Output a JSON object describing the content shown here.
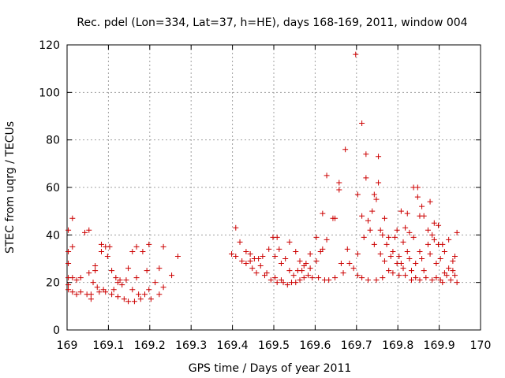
{
  "chart_data": {
    "type": "scatter",
    "title": "Rec. pdel (Lon=334, Lat=37, h=HE), days 168-169, 2011, window 004",
    "xlabel": "GPS time / Days of year 2011",
    "ylabel": "STEC from uqrg / TECUs",
    "xlim": [
      169,
      170
    ],
    "ylim": [
      0,
      120
    ],
    "x_ticks": [
      169,
      169.1,
      169.2,
      169.3,
      169.4,
      169.5,
      169.6,
      169.7,
      169.8,
      169.9,
      170
    ],
    "x_tick_labels": [
      "169",
      "169.1",
      "169.2",
      "169.3",
      "169.4",
      "169.5",
      "169.6",
      "169.7",
      "169.8",
      "169.9",
      "170"
    ],
    "y_ticks": [
      0,
      20,
      40,
      60,
      80,
      100,
      120
    ],
    "y_tick_labels": [
      "0",
      "20",
      "40",
      "60",
      "80",
      "100",
      "120"
    ],
    "grid": true,
    "marker": "+",
    "series": [
      {
        "name": "STEC",
        "color": "#cc0000",
        "points": [
          [
            169.003,
            42
          ],
          [
            169.003,
            33
          ],
          [
            169.003,
            28
          ],
          [
            169.003,
            22
          ],
          [
            169.003,
            19
          ],
          [
            169.003,
            17
          ],
          [
            169.013,
            47
          ],
          [
            169.013,
            35
          ],
          [
            169.013,
            22
          ],
          [
            169.013,
            16
          ],
          [
            169.023,
            21
          ],
          [
            169.023,
            15
          ],
          [
            169.033,
            22
          ],
          [
            169.033,
            16
          ],
          [
            169.043,
            41
          ],
          [
            169.048,
            15
          ],
          [
            169.053,
            42
          ],
          [
            169.053,
            24
          ],
          [
            169.058,
            15
          ],
          [
            169.058,
            13
          ],
          [
            169.063,
            20
          ],
          [
            169.068,
            27
          ],
          [
            169.068,
            25
          ],
          [
            169.073,
            18
          ],
          [
            169.078,
            16
          ],
          [
            169.083,
            36
          ],
          [
            169.083,
            33
          ],
          [
            169.088,
            17
          ],
          [
            169.093,
            35
          ],
          [
            169.093,
            16
          ],
          [
            169.098,
            31
          ],
          [
            169.103,
            35
          ],
          [
            169.108,
            15
          ],
          [
            169.108,
            25
          ],
          [
            169.113,
            17
          ],
          [
            169.118,
            22
          ],
          [
            169.123,
            20
          ],
          [
            169.123,
            14
          ],
          [
            169.128,
            21
          ],
          [
            169.133,
            19
          ],
          [
            169.138,
            13
          ],
          [
            169.143,
            21
          ],
          [
            169.148,
            26
          ],
          [
            169.148,
            12
          ],
          [
            169.158,
            33
          ],
          [
            169.158,
            17
          ],
          [
            169.163,
            12
          ],
          [
            169.168,
            35
          ],
          [
            169.168,
            22
          ],
          [
            169.173,
            15
          ],
          [
            169.178,
            13
          ],
          [
            169.183,
            33
          ],
          [
            169.188,
            15
          ],
          [
            169.193,
            25
          ],
          [
            169.198,
            36
          ],
          [
            169.198,
            17
          ],
          [
            169.203,
            13
          ],
          [
            169.213,
            20
          ],
          [
            169.223,
            26
          ],
          [
            169.223,
            15
          ],
          [
            169.233,
            35
          ],
          [
            169.233,
            18
          ],
          [
            169.253,
            23
          ],
          [
            169.268,
            31
          ],
          [
            169.398,
            32
          ],
          [
            169.408,
            43
          ],
          [
            169.408,
            31
          ],
          [
            169.418,
            37
          ],
          [
            169.423,
            29
          ],
          [
            169.433,
            33
          ],
          [
            169.433,
            28
          ],
          [
            169.443,
            32
          ],
          [
            169.443,
            29
          ],
          [
            169.448,
            26
          ],
          [
            169.453,
            30
          ],
          [
            169.458,
            24
          ],
          [
            169.463,
            30
          ],
          [
            169.468,
            27
          ],
          [
            169.473,
            31
          ],
          [
            169.478,
            23
          ],
          [
            169.483,
            24
          ],
          [
            169.488,
            34
          ],
          [
            169.493,
            21
          ],
          [
            169.498,
            39
          ],
          [
            169.503,
            31
          ],
          [
            169.503,
            22
          ],
          [
            169.508,
            39
          ],
          [
            169.508,
            20
          ],
          [
            169.513,
            34
          ],
          [
            169.518,
            28
          ],
          [
            169.518,
            21
          ],
          [
            169.523,
            20
          ],
          [
            169.528,
            30
          ],
          [
            169.533,
            19
          ],
          [
            169.538,
            37
          ],
          [
            169.538,
            25
          ],
          [
            169.543,
            20
          ],
          [
            169.548,
            23
          ],
          [
            169.553,
            33
          ],
          [
            169.553,
            20
          ],
          [
            169.558,
            25
          ],
          [
            169.563,
            29
          ],
          [
            169.563,
            21
          ],
          [
            169.568,
            25
          ],
          [
            169.573,
            27
          ],
          [
            169.573,
            22
          ],
          [
            169.578,
            28
          ],
          [
            169.583,
            23
          ],
          [
            169.588,
            32
          ],
          [
            169.588,
            26
          ],
          [
            169.593,
            22
          ],
          [
            169.603,
            39
          ],
          [
            169.603,
            29
          ],
          [
            169.608,
            22
          ],
          [
            169.613,
            33
          ],
          [
            169.618,
            49
          ],
          [
            169.618,
            34
          ],
          [
            169.623,
            21
          ],
          [
            169.628,
            65
          ],
          [
            169.628,
            38
          ],
          [
            169.633,
            21
          ],
          [
            169.643,
            47
          ],
          [
            169.648,
            47
          ],
          [
            169.648,
            22
          ],
          [
            169.658,
            62
          ],
          [
            169.658,
            59
          ],
          [
            169.663,
            28
          ],
          [
            169.668,
            24
          ],
          [
            169.673,
            76
          ],
          [
            169.678,
            34
          ],
          [
            169.683,
            28
          ],
          [
            169.693,
            26
          ],
          [
            169.698,
            116
          ],
          [
            169.703,
            57
          ],
          [
            169.703,
            32
          ],
          [
            169.703,
            23
          ],
          [
            169.713,
            87
          ],
          [
            169.713,
            48
          ],
          [
            169.713,
            22
          ],
          [
            169.718,
            39
          ],
          [
            169.723,
            74
          ],
          [
            169.723,
            64
          ],
          [
            169.728,
            46
          ],
          [
            169.728,
            21
          ],
          [
            169.733,
            42
          ],
          [
            169.738,
            50
          ],
          [
            169.743,
            57
          ],
          [
            169.743,
            36
          ],
          [
            169.748,
            55
          ],
          [
            169.748,
            21
          ],
          [
            169.753,
            73
          ],
          [
            169.753,
            62
          ],
          [
            169.758,
            42
          ],
          [
            169.758,
            32
          ],
          [
            169.763,
            40
          ],
          [
            169.763,
            22
          ],
          [
            169.768,
            47
          ],
          [
            169.768,
            29
          ],
          [
            169.773,
            36
          ],
          [
            169.778,
            39
          ],
          [
            169.778,
            25
          ],
          [
            169.783,
            31
          ],
          [
            169.788,
            33
          ],
          [
            169.788,
            24
          ],
          [
            169.793,
            39
          ],
          [
            169.798,
            42
          ],
          [
            169.798,
            28
          ],
          [
            169.803,
            23
          ],
          [
            169.803,
            31
          ],
          [
            169.808,
            50
          ],
          [
            169.808,
            28
          ],
          [
            169.813,
            37
          ],
          [
            169.813,
            26
          ],
          [
            169.818,
            43
          ],
          [
            169.818,
            23
          ],
          [
            169.823,
            49
          ],
          [
            169.823,
            33
          ],
          [
            169.828,
            41
          ],
          [
            169.828,
            30
          ],
          [
            169.833,
            25
          ],
          [
            169.833,
            21
          ],
          [
            169.838,
            60
          ],
          [
            169.838,
            39
          ],
          [
            169.843,
            28
          ],
          [
            169.843,
            22
          ],
          [
            169.848,
            60
          ],
          [
            169.848,
            56
          ],
          [
            169.853,
            48
          ],
          [
            169.853,
            33
          ],
          [
            169.853,
            21
          ],
          [
            169.858,
            52
          ],
          [
            169.858,
            30
          ],
          [
            169.863,
            48
          ],
          [
            169.863,
            25
          ],
          [
            169.868,
            22
          ],
          [
            169.873,
            42
          ],
          [
            169.873,
            36
          ],
          [
            169.878,
            54
          ],
          [
            169.878,
            32
          ],
          [
            169.883,
            40
          ],
          [
            169.883,
            21
          ],
          [
            169.888,
            45
          ],
          [
            169.888,
            38
          ],
          [
            169.893,
            28
          ],
          [
            169.893,
            22
          ],
          [
            169.898,
            44
          ],
          [
            169.898,
            36
          ],
          [
            169.903,
            30
          ],
          [
            169.903,
            21
          ],
          [
            169.908,
            36
          ],
          [
            169.908,
            20
          ],
          [
            169.913,
            33
          ],
          [
            169.913,
            24
          ],
          [
            169.918,
            23
          ],
          [
            169.923,
            38
          ],
          [
            169.923,
            26
          ],
          [
            169.928,
            21
          ],
          [
            169.933,
            29
          ],
          [
            169.933,
            25
          ],
          [
            169.938,
            31
          ],
          [
            169.938,
            23
          ],
          [
            169.943,
            41
          ],
          [
            169.943,
            20
          ]
        ]
      }
    ]
  }
}
